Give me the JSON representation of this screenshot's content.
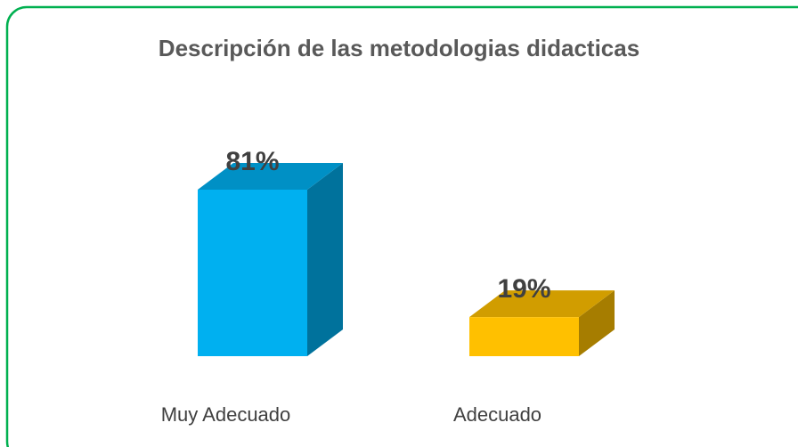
{
  "chart_data": {
    "type": "bar3d",
    "title": "Descripción de las metodologias didacticas",
    "categories": [
      "Muy Adecuado",
      "Adecuado"
    ],
    "values": [
      81,
      19
    ],
    "value_labels": [
      "81%",
      "19%"
    ],
    "colors": [
      "#00b0f0",
      "#ffc000"
    ]
  }
}
